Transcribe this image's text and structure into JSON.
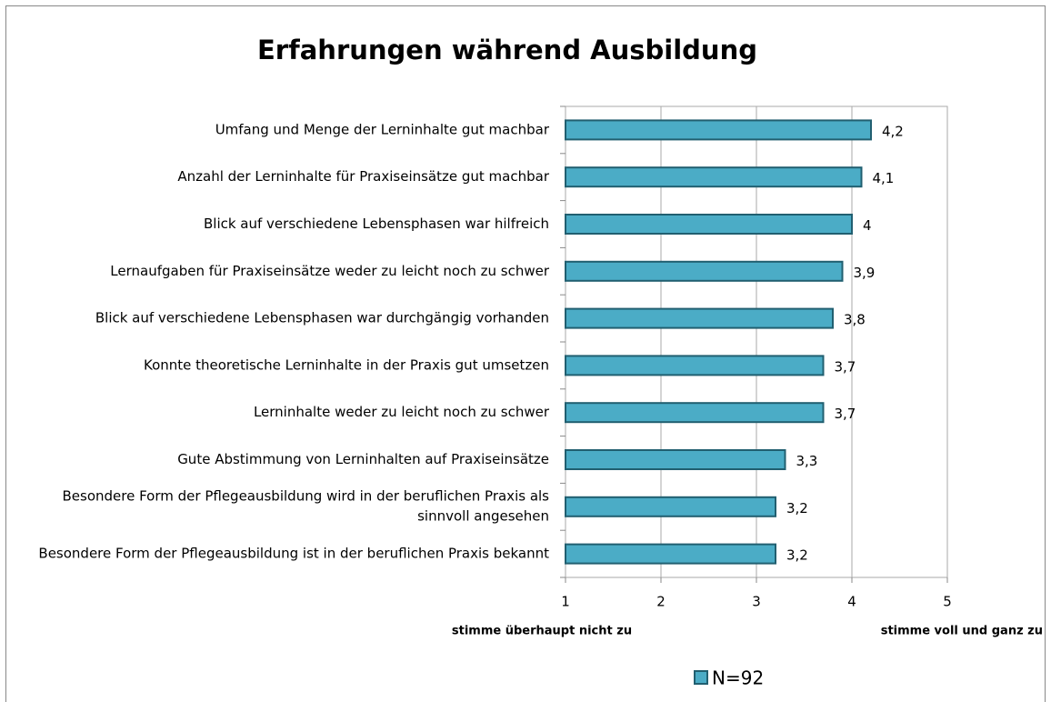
{
  "chart_data": {
    "type": "bar",
    "orientation": "horizontal",
    "title": "Erfahrungen während Ausbildung",
    "categories": [
      "Umfang und Menge der Lerninhalte gut machbar",
      "Anzahl der Lerninhalte für Praxiseinsätze gut machbar",
      "Blick auf verschiedene Lebensphasen war hilfreich",
      "Lernaufgaben für Praxiseinsätze weder zu leicht noch zu schwer",
      "Blick auf verschiedene Lebensphasen war durchgängig vorhanden",
      "Konnte theoretische Lerninhalte in der Praxis gut umsetzen",
      "Lerninhalte weder zu leicht noch zu schwer",
      "Gute Abstimmung von Lerninhalten auf Praxiseinsätze",
      "Besondere Form der Pflegeausbildung wird in der beruflichen Praxis als sinnvoll angesehen",
      "Besondere Form der Pflegeausbildung ist in der beruflichen Praxis bekannt"
    ],
    "series": [
      {
        "name": "N=92",
        "color": "#4bacc6",
        "values": [
          4.2,
          4.1,
          4,
          3.9,
          3.8,
          3.7,
          3.7,
          3.3,
          3.2,
          3.2
        ],
        "value_labels": [
          "4,2",
          "4,1",
          "4",
          "3,9",
          "3,8",
          "3,7",
          "3,7",
          "3,3",
          "3,2",
          "3,2"
        ]
      }
    ],
    "xlim": [
      1,
      5
    ],
    "xticks": [
      1,
      2,
      3,
      4,
      5
    ],
    "grid": true,
    "x_axis_label_left": "stimme überhaupt nicht zu",
    "x_axis_label_right": "stimme voll und ganz zu"
  }
}
